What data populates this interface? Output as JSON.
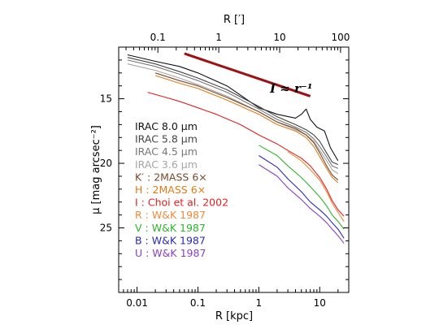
{
  "chart_data": {
    "type": "line",
    "xlabel": "R [kpc]",
    "ylabel": "μ [mag arcsec⁻²]",
    "top_xlabel": "R [′]",
    "x_scale": "log",
    "xlim": [
      0.005,
      30
    ],
    "ylim": [
      30,
      11
    ],
    "x_ticks": [
      {
        "value": 0.01,
        "label": "0.01"
      },
      {
        "value": 0.1,
        "label": "0.1"
      },
      {
        "value": 1,
        "label": "1"
      },
      {
        "value": 10,
        "label": "10"
      }
    ],
    "top_ticks": [
      {
        "value": 0.022,
        "label": "0.1"
      },
      {
        "value": 0.22,
        "label": "1"
      },
      {
        "value": 2.2,
        "label": "10"
      },
      {
        "value": 22,
        "label": "100"
      }
    ],
    "y_ticks": [
      {
        "value": 15,
        "label": "15"
      },
      {
        "value": 20,
        "label": "20"
      },
      {
        "value": 25,
        "label": "25"
      }
    ],
    "annotation": {
      "text": "I ≈ r⁻¹",
      "line_color": "#a01010",
      "x": [
        0.06,
        7
      ],
      "y": [
        11.5,
        14.8
      ]
    },
    "legend_position": "left",
    "series": [
      {
        "name": "IRAC 8.0 μm",
        "label": "IRAC 8.0 μm",
        "color": "#111111",
        "x": [
          0.007,
          0.02,
          0.05,
          0.1,
          0.3,
          1,
          2,
          4,
          5,
          6,
          7,
          9,
          12,
          15,
          20
        ],
        "y": [
          11.6,
          12.1,
          12.5,
          13.0,
          14.0,
          15.7,
          16.2,
          16.5,
          16.2,
          15.8,
          16.6,
          17.2,
          17.5,
          18.8,
          19.8
        ]
      },
      {
        "name": "IRAC 5.8 μm",
        "label": "IRAC 5.8 μm",
        "color": "#444444",
        "x": [
          0.007,
          0.02,
          0.05,
          0.1,
          0.3,
          1,
          2,
          4,
          6,
          8,
          10,
          13,
          16,
          20
        ],
        "y": [
          11.8,
          12.3,
          12.9,
          13.4,
          14.3,
          15.6,
          16.4,
          17.0,
          17.4,
          17.8,
          18.3,
          19.2,
          19.9,
          20.1
        ]
      },
      {
        "name": "IRAC 4.5 μm",
        "label": "IRAC 4.5 μm",
        "color": "#777777",
        "x": [
          0.007,
          0.02,
          0.05,
          0.1,
          0.3,
          1,
          2,
          4,
          6,
          8,
          10,
          13,
          16,
          20
        ],
        "y": [
          12.0,
          12.5,
          13.1,
          13.6,
          14.5,
          15.8,
          16.6,
          17.2,
          17.6,
          18.1,
          18.7,
          19.5,
          20.2,
          20.4
        ]
      },
      {
        "name": "IRAC 3.6 μm",
        "label": "IRAC 3.6 μm",
        "color": "#a5a5a5",
        "x": [
          0.007,
          0.02,
          0.05,
          0.1,
          0.3,
          1,
          2,
          4,
          6,
          8,
          10,
          13,
          16,
          20
        ],
        "y": [
          12.3,
          12.8,
          13.4,
          13.9,
          14.8,
          16.0,
          16.8,
          17.4,
          17.8,
          18.3,
          19.0,
          19.8,
          20.5,
          20.8
        ]
      },
      {
        "name": "K′ : 2MASS 6×",
        "label": "K′ : 2MASS 6×",
        "color": "#7a4a2a",
        "x": [
          0.02,
          0.05,
          0.1,
          0.3,
          1,
          2,
          4,
          6,
          8,
          10,
          13,
          16,
          20
        ],
        "y": [
          13.0,
          13.6,
          14.0,
          14.9,
          16.0,
          16.8,
          17.3,
          17.8,
          18.4,
          19.2,
          20.2,
          20.9,
          21.3
        ]
      },
      {
        "name": "H : 2MASS 6×",
        "label": "H : 2MASS 6×",
        "color": "#e07b1a",
        "x": [
          0.02,
          0.05,
          0.1,
          0.3,
          1,
          2,
          4,
          6,
          8,
          10,
          13,
          16,
          20
        ],
        "y": [
          13.2,
          13.8,
          14.2,
          15.1,
          16.2,
          17.0,
          17.5,
          18.0,
          18.7,
          19.5,
          20.4,
          21.1,
          21.5
        ]
      },
      {
        "name": "I : Choi et al. 2002",
        "label": "I : Choi et al. 2002",
        "color": "#e02020",
        "x": [
          0.015,
          0.03,
          0.05,
          0.1,
          0.2,
          0.5,
          1,
          2,
          3,
          5,
          7,
          10,
          13,
          16,
          20,
          25
        ],
        "y": [
          14.5,
          14.9,
          15.2,
          15.7,
          16.2,
          17.0,
          17.8,
          18.5,
          19.0,
          19.6,
          20.2,
          21.1,
          22.0,
          22.9,
          23.6,
          24.1
        ]
      },
      {
        "name": "R : W&K 1987",
        "label": "R : W&K 1987",
        "color": "#f08a3a",
        "x": [
          3,
          5,
          7,
          10,
          13,
          16,
          20,
          25
        ],
        "y": [
          19.1,
          19.8,
          20.5,
          21.3,
          22.2,
          23.1,
          23.8,
          24.5
        ]
      },
      {
        "name": "V : W&K 1987",
        "label": "V : W&K 1987",
        "color": "#2cb52c",
        "x": [
          1,
          2,
          3,
          5,
          7,
          10,
          13,
          16,
          20,
          25
        ],
        "y": [
          18.6,
          19.4,
          20.2,
          21.1,
          21.8,
          22.6,
          23.3,
          24.0,
          24.5,
          25.1
        ]
      },
      {
        "name": "B : W&K 1987",
        "label": "B : W&K 1987",
        "color": "#2a2ab8",
        "x": [
          1,
          2,
          3,
          5,
          7,
          10,
          13,
          16,
          20,
          25
        ],
        "y": [
          19.4,
          20.3,
          21.2,
          22.2,
          23.0,
          23.6,
          24.1,
          24.6,
          25.1,
          25.8
        ]
      },
      {
        "name": "U : W&K 1987",
        "label": "U : W&K 1987",
        "color": "#8a40c8",
        "x": [
          1,
          2,
          3,
          5,
          7,
          10,
          13,
          16,
          20,
          25
        ],
        "y": [
          20.1,
          21.0,
          21.9,
          22.8,
          23.5,
          24.1,
          24.6,
          25.1,
          25.6,
          26.2
        ]
      }
    ]
  }
}
